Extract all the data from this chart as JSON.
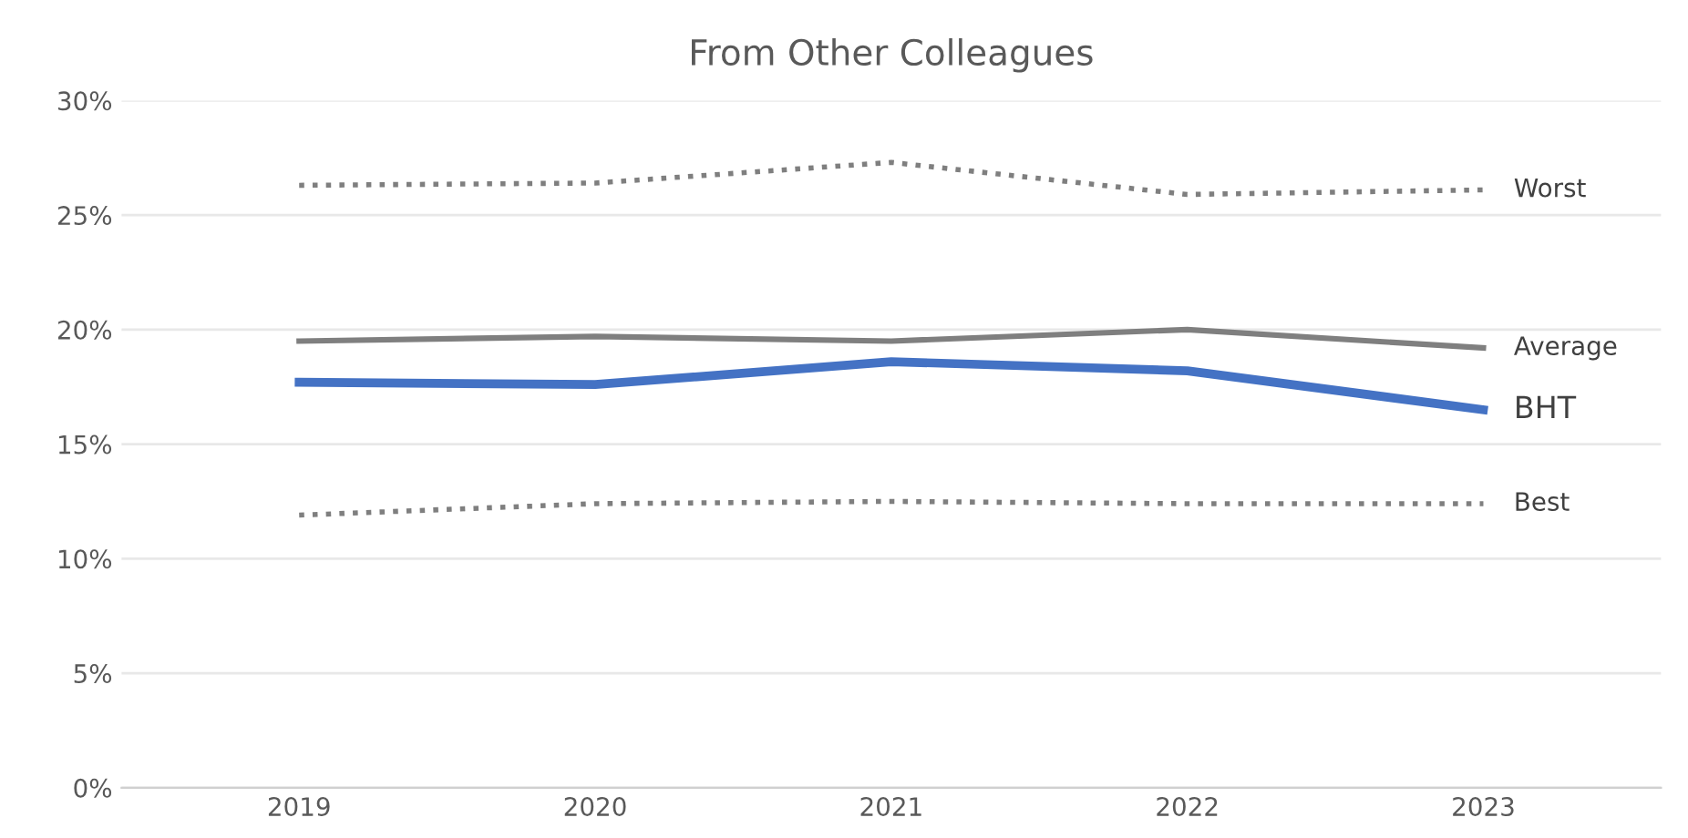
{
  "chart_data": {
    "type": "line",
    "title": "From Other Colleagues",
    "categories": [
      "2019",
      "2020",
      "2021",
      "2022",
      "2023"
    ],
    "series": [
      {
        "name": "Worst",
        "color": "#7f7f7f",
        "line_style": "dotted",
        "values": [
          26.3,
          26.4,
          27.3,
          25.9,
          26.1
        ]
      },
      {
        "name": "Average",
        "color": "#7f7f7f",
        "line_style": "solid",
        "values": [
          19.5,
          19.7,
          19.5,
          20.0,
          19.2
        ]
      },
      {
        "name": "BHT",
        "color": "#4472c4",
        "line_style": "solid",
        "values": [
          17.7,
          17.6,
          18.6,
          18.2,
          16.5
        ]
      },
      {
        "name": "Best",
        "color": "#7f7f7f",
        "line_style": "dotted",
        "values": [
          11.9,
          12.4,
          12.5,
          12.4,
          12.4
        ]
      }
    ],
    "ylim": [
      0,
      30
    ],
    "yticks": [
      {
        "value": 0,
        "label": "0%"
      },
      {
        "value": 5,
        "label": "5%"
      },
      {
        "value": 10,
        "label": "10%"
      },
      {
        "value": 15,
        "label": "15%"
      },
      {
        "value": 20,
        "label": "20%"
      },
      {
        "value": 25,
        "label": "25%"
      },
      {
        "value": 30,
        "label": "30%"
      }
    ],
    "grid": "y",
    "legend": false
  }
}
